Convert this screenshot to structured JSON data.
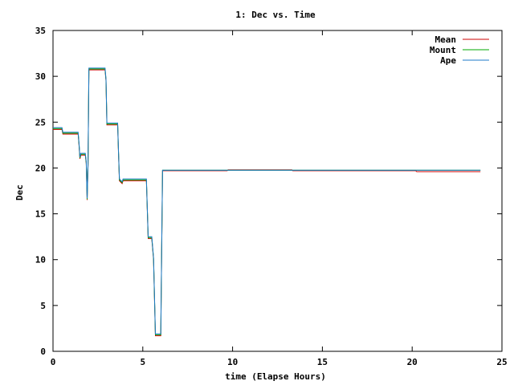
{
  "chart_data": {
    "type": "line",
    "title": "1: Dec vs. Time",
    "xlabel": "time (Elapse Hours)",
    "ylabel": "Dec",
    "xlim": [
      0,
      25
    ],
    "ylim": [
      0,
      35
    ],
    "xticks": [
      0,
      5,
      10,
      15,
      20,
      25
    ],
    "yticks": [
      0,
      5,
      10,
      15,
      20,
      25,
      30,
      35
    ],
    "grid": false,
    "legend_position": "top-right",
    "series": [
      {
        "name": "Mean",
        "color": "#cc0000",
        "points": [
          [
            0,
            24.2
          ],
          [
            0.5,
            24.2
          ],
          [
            0.55,
            23.7
          ],
          [
            1.4,
            23.7
          ],
          [
            1.45,
            22.5
          ],
          [
            1.5,
            21.0
          ],
          [
            1.55,
            21.4
          ],
          [
            1.8,
            21.4
          ],
          [
            1.85,
            20.5
          ],
          [
            1.9,
            16.5
          ],
          [
            1.95,
            20.3
          ],
          [
            2.0,
            30.7
          ],
          [
            2.9,
            30.7
          ],
          [
            2.95,
            29.5
          ],
          [
            3.0,
            24.7
          ],
          [
            3.6,
            24.7
          ],
          [
            3.65,
            21.5
          ],
          [
            3.7,
            18.6
          ],
          [
            3.85,
            18.3
          ],
          [
            3.9,
            18.6
          ],
          [
            5.2,
            18.6
          ],
          [
            5.3,
            12.3
          ],
          [
            5.5,
            12.3
          ],
          [
            5.6,
            10.0
          ],
          [
            5.7,
            1.7
          ],
          [
            6.0,
            1.7
          ],
          [
            6.05,
            10.9
          ],
          [
            6.1,
            19.7
          ],
          [
            9.7,
            19.7
          ],
          [
            9.75,
            19.8
          ],
          [
            13.3,
            19.8
          ],
          [
            13.35,
            19.7
          ],
          [
            20.2,
            19.7
          ],
          [
            20.25,
            19.6
          ],
          [
            23.8,
            19.6
          ]
        ]
      },
      {
        "name": "Mount",
        "color": "#00aa00",
        "points": [
          [
            0,
            24.3
          ],
          [
            0.5,
            24.3
          ],
          [
            0.55,
            23.8
          ],
          [
            1.4,
            23.8
          ],
          [
            1.45,
            22.6
          ],
          [
            1.5,
            21.1
          ],
          [
            1.55,
            21.5
          ],
          [
            1.8,
            21.5
          ],
          [
            1.85,
            20.6
          ],
          [
            1.9,
            16.6
          ],
          [
            1.95,
            20.4
          ],
          [
            2.0,
            30.8
          ],
          [
            2.9,
            30.8
          ],
          [
            2.95,
            29.6
          ],
          [
            3.0,
            24.8
          ],
          [
            3.6,
            24.8
          ],
          [
            3.65,
            21.6
          ],
          [
            3.7,
            18.7
          ],
          [
            3.85,
            18.4
          ],
          [
            3.9,
            18.7
          ],
          [
            5.2,
            18.7
          ],
          [
            5.3,
            12.4
          ],
          [
            5.5,
            12.4
          ],
          [
            5.6,
            10.1
          ],
          [
            5.7,
            1.8
          ],
          [
            6.0,
            1.8
          ],
          [
            6.05,
            11.0
          ],
          [
            6.1,
            19.75
          ],
          [
            23.8,
            19.75
          ]
        ]
      },
      {
        "name": "Ape",
        "color": "#1e78c8",
        "points": [
          [
            0,
            24.4
          ],
          [
            0.5,
            24.4
          ],
          [
            0.55,
            23.9
          ],
          [
            1.4,
            23.9
          ],
          [
            1.45,
            22.7
          ],
          [
            1.5,
            21.2
          ],
          [
            1.55,
            21.6
          ],
          [
            1.8,
            21.6
          ],
          [
            1.85,
            20.7
          ],
          [
            1.9,
            16.7
          ],
          [
            1.95,
            20.5
          ],
          [
            2.0,
            30.9
          ],
          [
            2.9,
            30.9
          ],
          [
            2.95,
            29.7
          ],
          [
            3.0,
            24.9
          ],
          [
            3.6,
            24.9
          ],
          [
            3.65,
            21.7
          ],
          [
            3.7,
            18.8
          ],
          [
            3.85,
            18.5
          ],
          [
            3.9,
            18.8
          ],
          [
            5.2,
            18.8
          ],
          [
            5.3,
            12.5
          ],
          [
            5.5,
            12.5
          ],
          [
            5.6,
            10.2
          ],
          [
            5.7,
            1.9
          ],
          [
            6.0,
            1.9
          ],
          [
            6.05,
            11.1
          ],
          [
            6.1,
            19.75
          ],
          [
            23.8,
            19.75
          ]
        ]
      }
    ]
  }
}
